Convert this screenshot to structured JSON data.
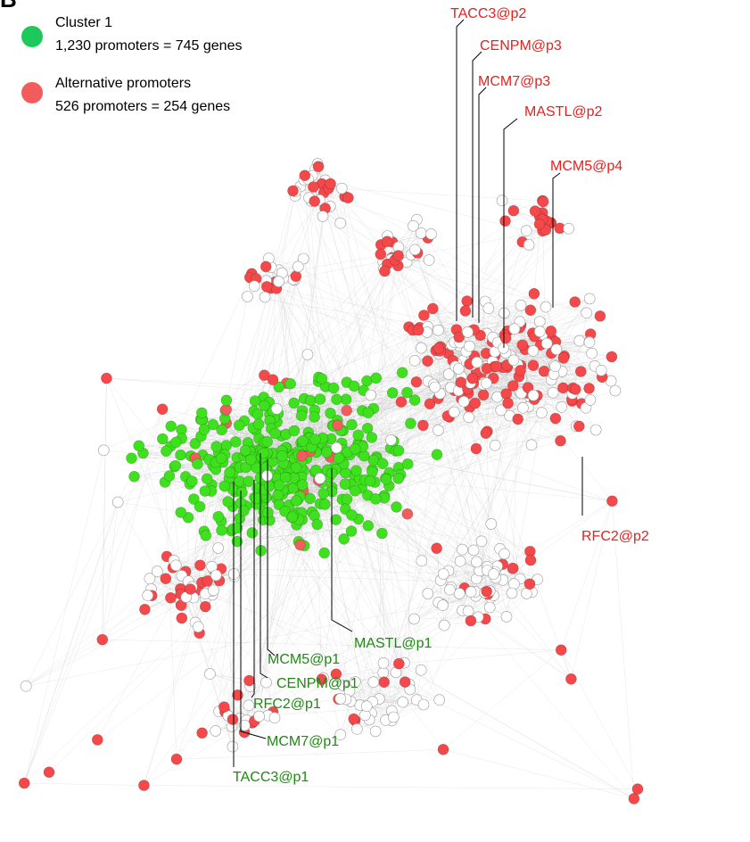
{
  "panel": "B",
  "legend": [
    {
      "label": "Cluster 1",
      "detail": "1,230 promoters = 745 genes"
    },
    {
      "label": "Alternative promoters",
      "detail": "526 promoters = 254 genes"
    }
  ],
  "labels_red": [
    "TACC3@p2",
    "CENPM@p3",
    "MCM7@p3",
    "MASTL@p2",
    "MCM5@p4",
    "RFC2@p2"
  ],
  "labels_green": [
    "MASTL@p1",
    "MCM5@p1",
    "CENPM@p1",
    "RFC2@p1",
    "MCM7@p1",
    "TACC3@p1"
  ]
}
